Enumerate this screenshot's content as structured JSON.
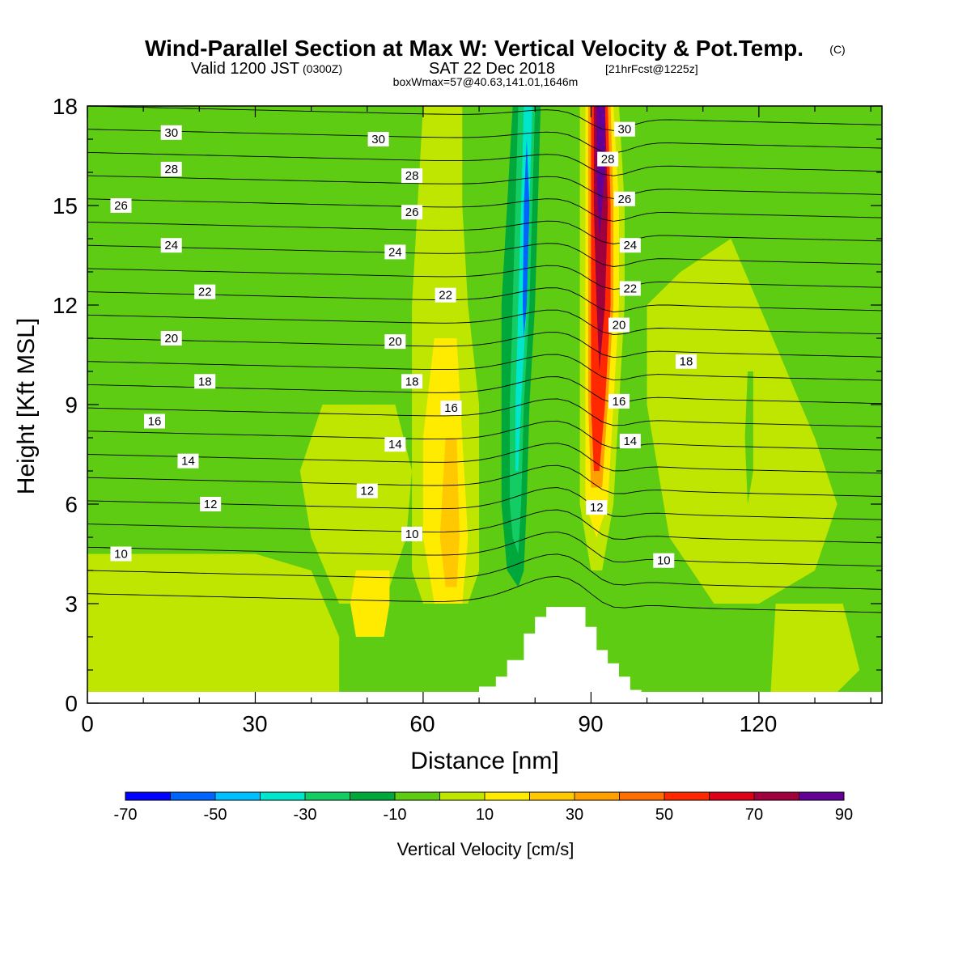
{
  "title": {
    "main": "Wind-Parallel Section at Max W: Vertical Velocity & Pot.Temp.",
    "copyright": "(C)",
    "valid_a": "Valid 1200 JST",
    "valid_b": "(0300Z)",
    "valid_c": "SAT 22 Dec 2018",
    "valid_d": "[21hrFcst@1225z]",
    "boxinfo": "boxWmax=57@40.63,141.01,1646m"
  },
  "chart_data": {
    "type": "heatmap",
    "xlabel": "Distance [nm]",
    "ylabel": "Height [Kft MSL]",
    "xlim": [
      0,
      142
    ],
    "ylim": [
      0,
      18
    ],
    "xticks": [
      "0",
      "30",
      "60",
      "90",
      "120"
    ],
    "yticks": [
      "0",
      "3",
      "6",
      "9",
      "12",
      "15",
      "18"
    ],
    "colorbar": {
      "label": "Vertical Velocity [cm/s]",
      "levels": [
        -70,
        -60,
        -50,
        -40,
        -30,
        -20,
        -10,
        0,
        10,
        20,
        30,
        40,
        50,
        60,
        70,
        80,
        90
      ],
      "tick_labels": [
        "-70",
        "-50",
        "-30",
        "-10",
        "10",
        "30",
        "50",
        "70",
        "90"
      ],
      "colors": [
        "#0000ff",
        "#0064ff",
        "#00bfff",
        "#00e6cc",
        "#14cc64",
        "#00a83c",
        "#5fcc14",
        "#bfe600",
        "#ffeb00",
        "#ffc800",
        "#ffa000",
        "#ff6e00",
        "#ff2800",
        "#dc0014",
        "#a0003c",
        "#640096"
      ]
    },
    "background_color": "#5fcc14",
    "w_regions": [
      {
        "level": -10,
        "poly": [
          [
            72,
            18
          ],
          [
            82,
            18
          ],
          [
            81.5,
            15
          ],
          [
            81,
            12
          ],
          [
            80,
            9
          ],
          [
            79.5,
            6
          ],
          [
            79,
            4
          ],
          [
            80,
            3
          ],
          [
            79,
            2.8
          ],
          [
            75,
            3
          ],
          [
            72.5,
            4
          ],
          [
            71.5,
            6
          ],
          [
            71,
            9
          ],
          [
            71,
            12
          ],
          [
            71.5,
            15
          ]
        ]
      },
      {
        "level": -20,
        "poly": [
          [
            76,
            18
          ],
          [
            81,
            18
          ],
          [
            80.5,
            15
          ],
          [
            80,
            12
          ],
          [
            79,
            9
          ],
          [
            78.5,
            6
          ],
          [
            78,
            4
          ],
          [
            77,
            3.5
          ],
          [
            75,
            4
          ],
          [
            74,
            6
          ],
          [
            74,
            9
          ],
          [
            74,
            12
          ],
          [
            75,
            15
          ]
        ]
      },
      {
        "level": -30,
        "poly": [
          [
            77,
            18
          ],
          [
            80,
            18
          ],
          [
            79.5,
            15
          ],
          [
            79,
            12
          ],
          [
            78,
            9
          ],
          [
            77.5,
            6
          ],
          [
            77,
            4.5
          ],
          [
            76,
            5
          ],
          [
            75.5,
            6
          ],
          [
            75.5,
            9
          ],
          [
            76,
            12
          ],
          [
            76.5,
            15
          ]
        ]
      },
      {
        "level": -40,
        "poly": [
          [
            78,
            18
          ],
          [
            79.5,
            18
          ],
          [
            79,
            15
          ],
          [
            78.5,
            12
          ],
          [
            77.5,
            9
          ],
          [
            77,
            7
          ],
          [
            76.5,
            7
          ],
          [
            76.5,
            9
          ],
          [
            77,
            12
          ],
          [
            77.5,
            15
          ]
        ]
      },
      {
        "level": -60,
        "poly": [
          [
            78.5,
            17
          ],
          [
            79,
            15
          ],
          [
            78.5,
            12
          ],
          [
            78,
            11
          ],
          [
            77.8,
            12
          ],
          [
            78,
            15
          ]
        ]
      },
      {
        "level": 0,
        "poly": [
          [
            60,
            18
          ],
          [
            67,
            18
          ],
          [
            67,
            15
          ],
          [
            68,
            12
          ],
          [
            70,
            9
          ],
          [
            70,
            6
          ],
          [
            70,
            4
          ],
          [
            68,
            3
          ],
          [
            60,
            3
          ],
          [
            58,
            4
          ],
          [
            58,
            8
          ],
          [
            58,
            12
          ],
          [
            59,
            15
          ]
        ]
      },
      {
        "level": 10,
        "poly": [
          [
            62,
            11
          ],
          [
            66,
            11
          ],
          [
            67,
            8
          ],
          [
            68,
            5
          ],
          [
            67,
            3
          ],
          [
            62,
            3
          ],
          [
            60,
            5
          ],
          [
            60,
            8
          ]
        ]
      },
      {
        "level": 20,
        "poly": [
          [
            64,
            8
          ],
          [
            66,
            8
          ],
          [
            66.5,
            5
          ],
          [
            66,
            3.5
          ],
          [
            64,
            3.5
          ],
          [
            63,
            5
          ]
        ]
      },
      {
        "level": 0,
        "poly": [
          [
            42,
            9
          ],
          [
            55,
            9
          ],
          [
            58,
            7
          ],
          [
            57,
            5
          ],
          [
            53,
            3
          ],
          [
            45,
            3
          ],
          [
            40,
            5
          ],
          [
            38,
            7
          ]
        ]
      },
      {
        "level": 10,
        "poly": [
          [
            48,
            4
          ],
          [
            54,
            4
          ],
          [
            54,
            3
          ],
          [
            53,
            2
          ],
          [
            48,
            2
          ],
          [
            47,
            3
          ]
        ]
      },
      {
        "level": 0,
        "poly": [
          [
            0,
            4.5
          ],
          [
            30,
            4.5
          ],
          [
            40,
            4
          ],
          [
            45,
            2
          ],
          [
            45,
            0
          ],
          [
            0,
            0
          ]
        ]
      },
      {
        "level": 0,
        "poly": [
          [
            88,
            18
          ],
          [
            95,
            18
          ],
          [
            96,
            15
          ],
          [
            96,
            12
          ],
          [
            95,
            9
          ],
          [
            94,
            6
          ],
          [
            92,
            4
          ],
          [
            90,
            4
          ],
          [
            88,
            6
          ]
        ]
      },
      {
        "level": 10,
        "poly": [
          [
            89,
            18
          ],
          [
            94,
            18
          ],
          [
            95,
            15
          ],
          [
            95,
            12
          ],
          [
            94,
            9
          ],
          [
            93,
            6
          ],
          [
            91,
            5
          ],
          [
            89,
            6
          ]
        ]
      },
      {
        "level": 30,
        "poly": [
          [
            89.5,
            18
          ],
          [
            93.5,
            18
          ],
          [
            94,
            15
          ],
          [
            94,
            12
          ],
          [
            93,
            9
          ],
          [
            92,
            6.5
          ],
          [
            90,
            6.5
          ],
          [
            89.5,
            9
          ]
        ]
      },
      {
        "level": 50,
        "poly": [
          [
            90,
            18
          ],
          [
            93,
            18
          ],
          [
            93.5,
            15
          ],
          [
            93.5,
            12
          ],
          [
            92.5,
            9
          ],
          [
            91.5,
            7
          ],
          [
            90.5,
            7
          ],
          [
            90,
            9
          ]
        ]
      },
      {
        "level": 70,
        "poly": [
          [
            90.5,
            18
          ],
          [
            92.5,
            18
          ],
          [
            93,
            15
          ],
          [
            92.5,
            12
          ],
          [
            91.5,
            10
          ],
          [
            91,
            12
          ],
          [
            90.5,
            15
          ]
        ]
      },
      {
        "level": 80,
        "poly": [
          [
            91,
            18
          ],
          [
            92.5,
            18
          ],
          [
            92.5,
            16
          ],
          [
            91.5,
            14
          ],
          [
            91,
            16
          ]
        ]
      },
      {
        "level": 0,
        "poly": [
          [
            106,
            13
          ],
          [
            115,
            14
          ],
          [
            120,
            12
          ],
          [
            125,
            10
          ],
          [
            130,
            8
          ],
          [
            134,
            6
          ],
          [
            130,
            4
          ],
          [
            120,
            3
          ],
          [
            112,
            3
          ],
          [
            104,
            5
          ],
          [
            100,
            9
          ],
          [
            100,
            12
          ]
        ]
      },
      {
        "level": 0,
        "poly": [
          [
            123,
            3
          ],
          [
            135,
            3
          ],
          [
            138,
            1
          ],
          [
            132,
            0
          ],
          [
            122,
            0
          ]
        ]
      },
      {
        "level": -10,
        "poly": [
          [
            118,
            10
          ],
          [
            119,
            10
          ],
          [
            119,
            7
          ],
          [
            118,
            6
          ],
          [
            117.5,
            8
          ]
        ]
      }
    ],
    "terrain": [
      [
        70,
        0
      ],
      [
        70,
        0.5
      ],
      [
        73,
        0.5
      ],
      [
        73,
        0.8
      ],
      [
        75,
        0.8
      ],
      [
        75,
        1.3
      ],
      [
        78,
        1.3
      ],
      [
        78,
        2.1
      ],
      [
        80,
        2.1
      ],
      [
        80,
        2.6
      ],
      [
        82,
        2.6
      ],
      [
        82,
        2.9
      ],
      [
        84,
        2.9
      ],
      [
        84,
        2.9
      ],
      [
        89,
        2.9
      ],
      [
        89,
        2.3
      ],
      [
        91,
        2.3
      ],
      [
        91,
        1.6
      ],
      [
        93,
        1.6
      ],
      [
        93,
        1.2
      ],
      [
        95,
        1.2
      ],
      [
        95,
        0.8
      ],
      [
        97,
        0.8
      ],
      [
        97,
        0.4
      ],
      [
        99,
        0.4
      ],
      [
        99,
        0
      ]
    ],
    "theta_lines": {
      "count": 22,
      "ridge_x": 85,
      "ridge_y": 3.2
    },
    "theta_labels": [
      {
        "text": "30",
        "x": 15,
        "y": 17.2
      },
      {
        "text": "30",
        "x": 52,
        "y": 17.0
      },
      {
        "text": "30",
        "x": 96,
        "y": 17.3
      },
      {
        "text": "28",
        "x": 15,
        "y": 16.1
      },
      {
        "text": "28",
        "x": 58,
        "y": 15.9
      },
      {
        "text": "28",
        "x": 93,
        "y": 16.4
      },
      {
        "text": "26",
        "x": 6,
        "y": 15.0
      },
      {
        "text": "26",
        "x": 58,
        "y": 14.8
      },
      {
        "text": "26",
        "x": 96,
        "y": 15.2
      },
      {
        "text": "24",
        "x": 15,
        "y": 13.8
      },
      {
        "text": "24",
        "x": 55,
        "y": 13.6
      },
      {
        "text": "24",
        "x": 97,
        "y": 13.8
      },
      {
        "text": "22",
        "x": 21,
        "y": 12.4
      },
      {
        "text": "22",
        "x": 64,
        "y": 12.3
      },
      {
        "text": "22",
        "x": 97,
        "y": 12.5
      },
      {
        "text": "20",
        "x": 15,
        "y": 11.0
      },
      {
        "text": "20",
        "x": 55,
        "y": 10.9
      },
      {
        "text": "20",
        "x": 95,
        "y": 11.4
      },
      {
        "text": "18",
        "x": 21,
        "y": 9.7
      },
      {
        "text": "18",
        "x": 58,
        "y": 9.7
      },
      {
        "text": "18",
        "x": 107,
        "y": 10.3
      },
      {
        "text": "16",
        "x": 12,
        "y": 8.5
      },
      {
        "text": "16",
        "x": 65,
        "y": 8.9
      },
      {
        "text": "16",
        "x": 95,
        "y": 9.1
      },
      {
        "text": "14",
        "x": 18,
        "y": 7.3
      },
      {
        "text": "14",
        "x": 55,
        "y": 7.8
      },
      {
        "text": "14",
        "x": 97,
        "y": 7.9
      },
      {
        "text": "12",
        "x": 22,
        "y": 6.0
      },
      {
        "text": "12",
        "x": 50,
        "y": 6.4
      },
      {
        "text": "12",
        "x": 91,
        "y": 5.9
      },
      {
        "text": "10",
        "x": 6,
        "y": 4.5
      },
      {
        "text": "10",
        "x": 58,
        "y": 5.1
      },
      {
        "text": "10",
        "x": 103,
        "y": 4.3
      }
    ]
  }
}
